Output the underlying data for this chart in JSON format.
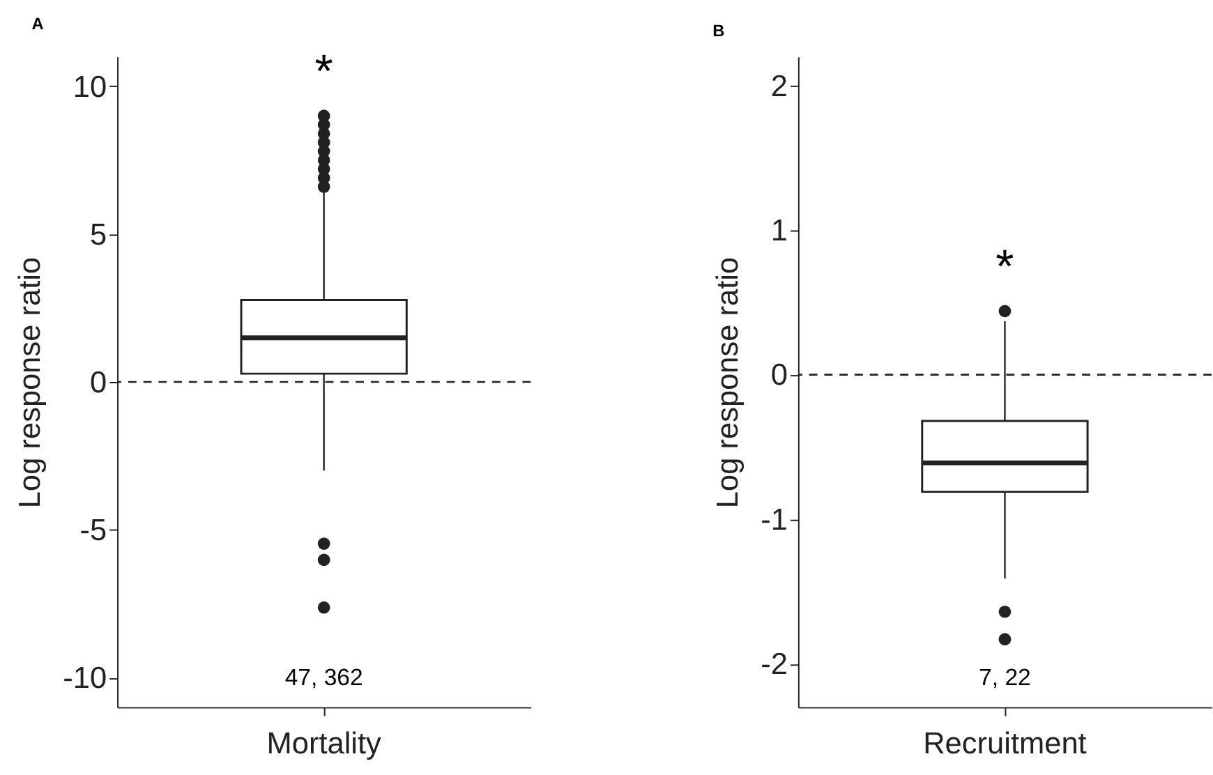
{
  "chart_data": [
    {
      "type": "box",
      "title": "A",
      "categories": [
        "Mortality"
      ],
      "ylabel": "Log response ratio",
      "ylim": [
        -11,
        11
      ],
      "yticks": [
        -10,
        -5,
        0,
        5,
        10
      ],
      "grid": false,
      "boxes": [
        {
          "low": -3.0,
          "q1": 0.28,
          "median": 1.49,
          "q3": 2.77,
          "high": 6.5,
          "outliers": [
            6.6,
            6.9,
            7.2,
            7.5,
            7.8,
            8.1,
            8.4,
            8.7,
            9.0,
            -5.47,
            -6.02,
            -7.63
          ]
        }
      ],
      "ref_lines": [
        {
          "axis": "y",
          "value": 0,
          "line_style": "dashed"
        }
      ],
      "annotations": [
        "*",
        "47, 362"
      ]
    },
    {
      "type": "box",
      "title": "B",
      "categories": [
        "Recruitment"
      ],
      "ylabel": "Log response ratio",
      "ylim": [
        -2.3,
        2.2
      ],
      "yticks": [
        -2,
        -1,
        0,
        1,
        2
      ],
      "grid": false,
      "boxes": [
        {
          "low": -1.41,
          "q1": -0.81,
          "median": -0.61,
          "q3": -0.32,
          "high": 0.37,
          "outliers": [
            0.44,
            -1.64,
            -1.83
          ]
        }
      ],
      "ref_lines": [
        {
          "axis": "y",
          "value": 0,
          "line_style": "dashed"
        }
      ],
      "annotations": [
        "*",
        "7, 22"
      ]
    }
  ]
}
